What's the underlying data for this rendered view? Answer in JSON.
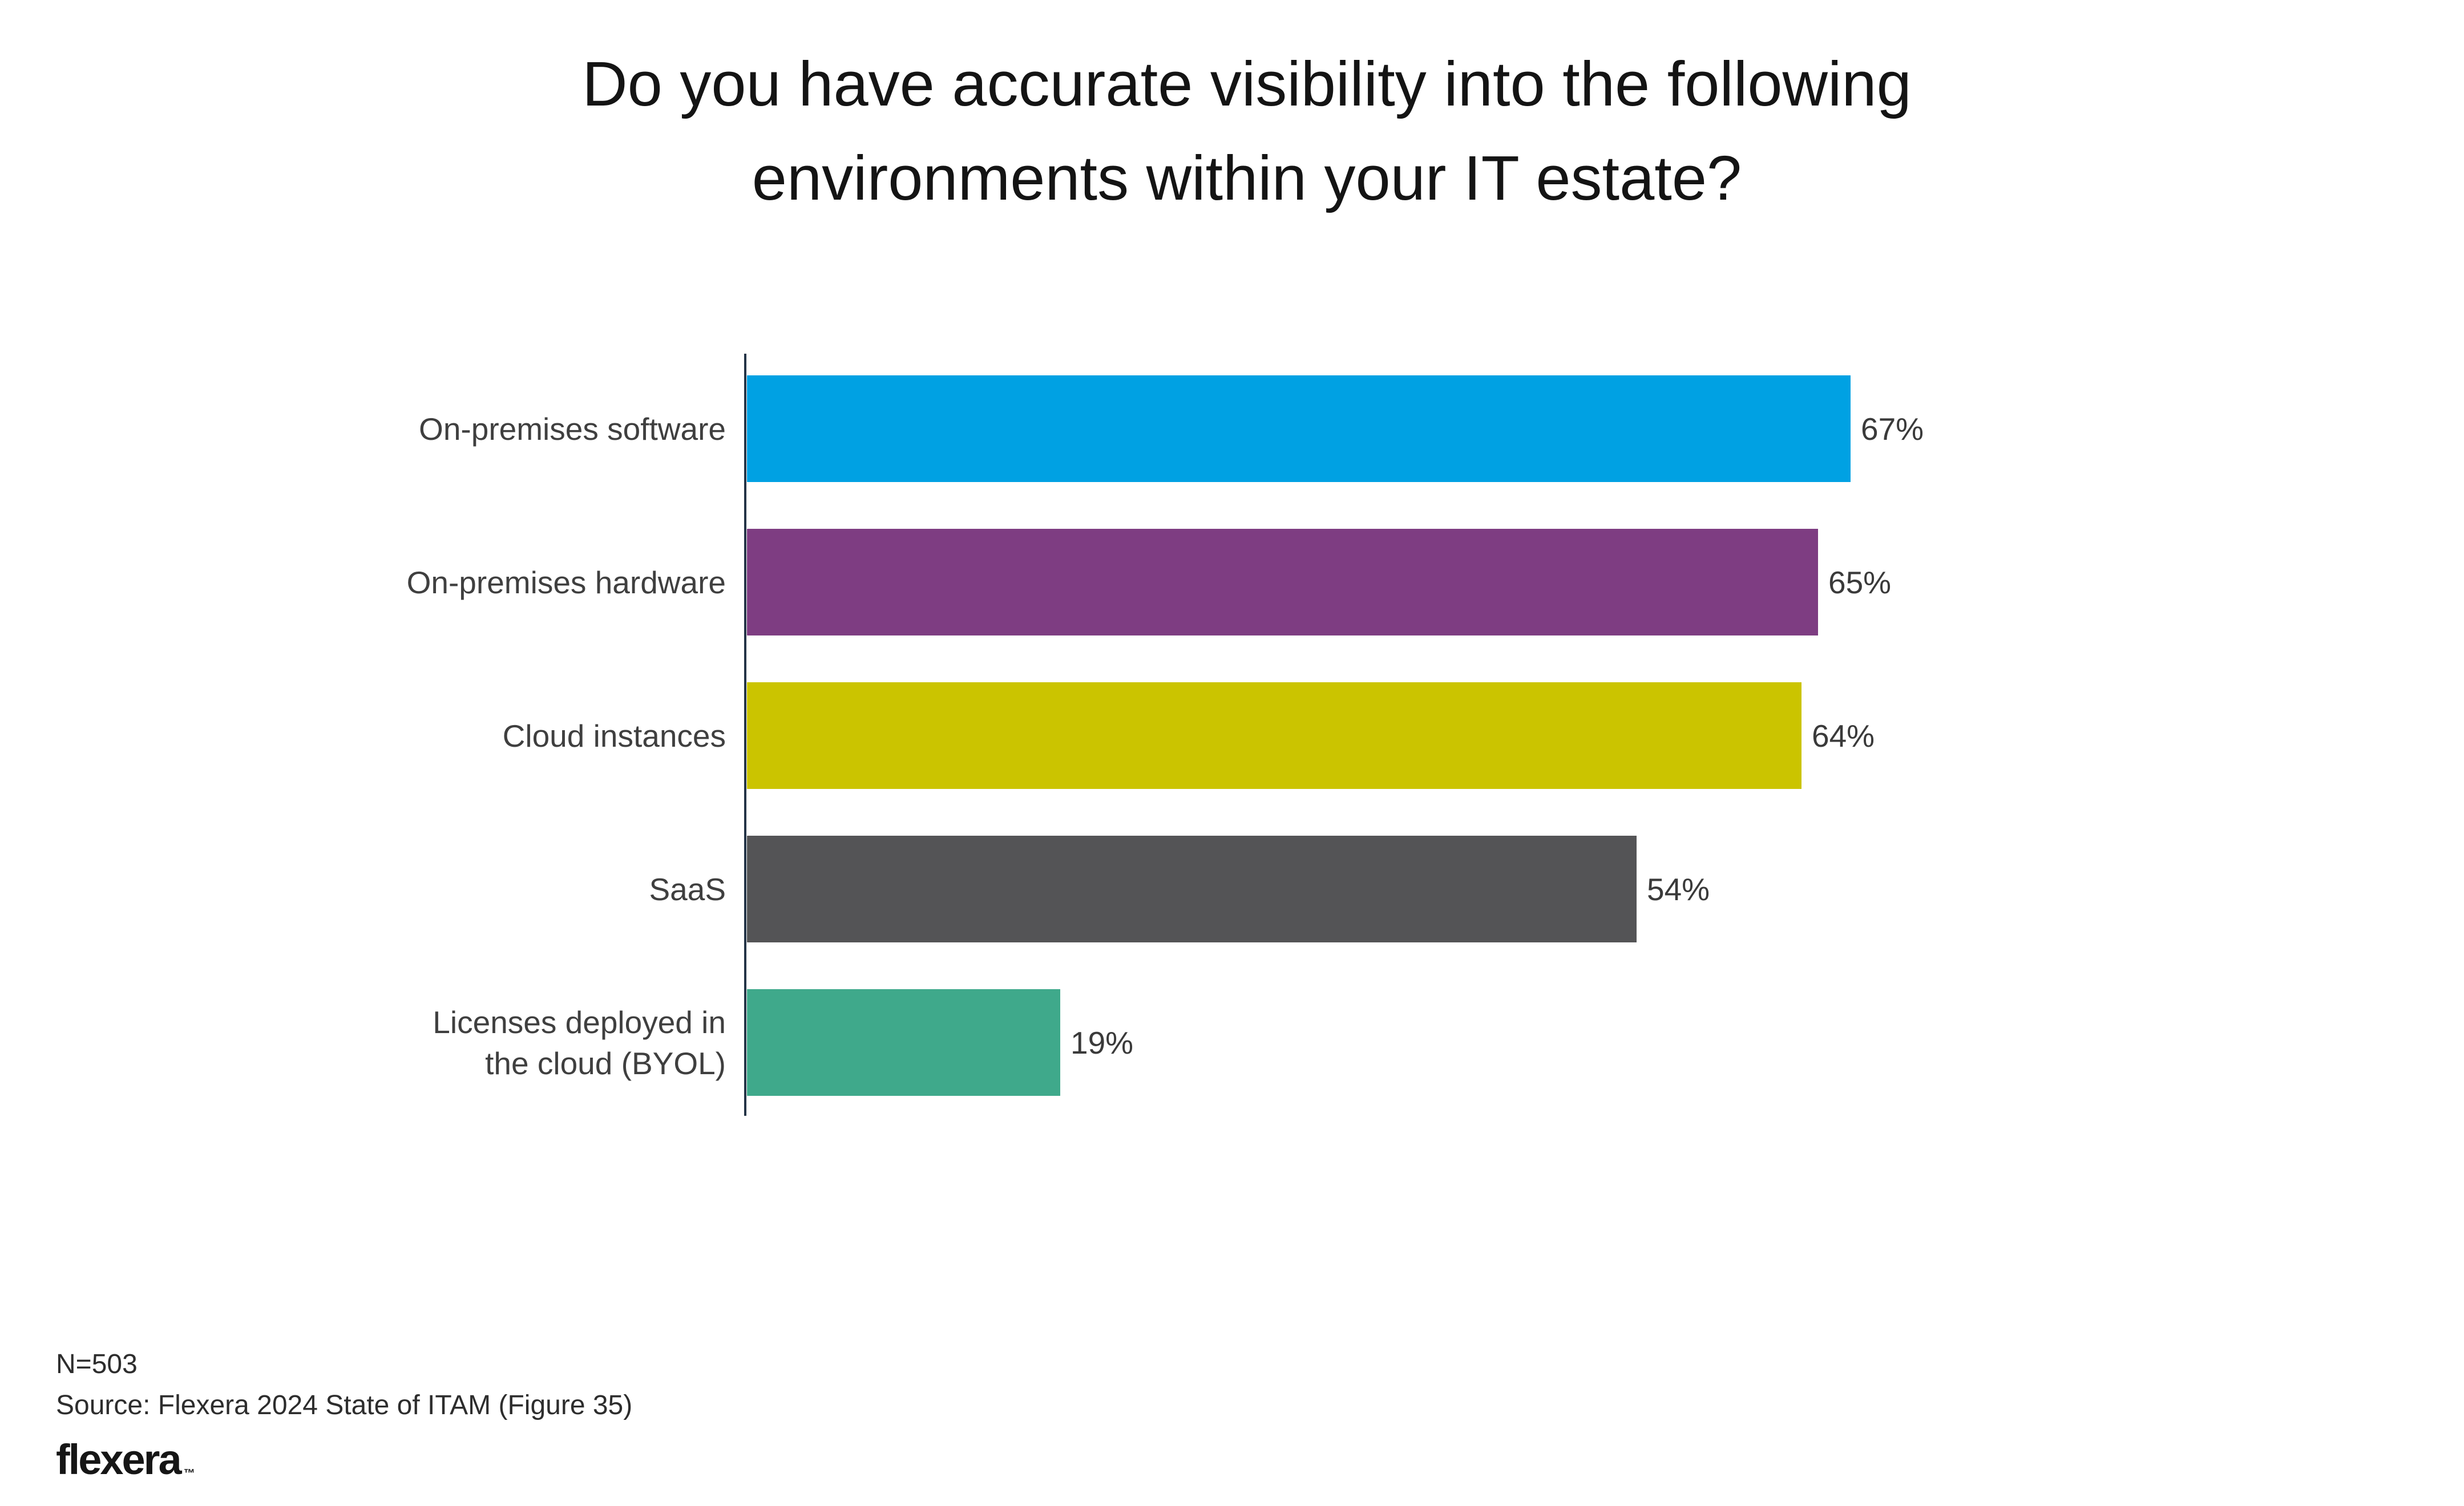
{
  "title": {
    "line1": "Do you have accurate visibility into the following",
    "line2": "environments within your IT estate?"
  },
  "chart_data": {
    "type": "bar",
    "orientation": "horizontal",
    "title": "Do you have accurate visibility into the following environments within your IT estate?",
    "categories": [
      "On-premises software",
      "On-premises hardware",
      "Cloud instances",
      "SaaS",
      "Licenses deployed in\nthe cloud (BYOL)"
    ],
    "values": [
      67,
      65,
      64,
      54,
      19
    ],
    "value_labels": [
      "67%",
      "65%",
      "64%",
      "54%",
      "19%"
    ],
    "unit": "percent",
    "xlim": [
      0,
      100
    ],
    "grid": false,
    "legend": false,
    "bar_colors": [
      "#00A1E3",
      "#7E3D82",
      "#CBC400",
      "#545456",
      "#3FA98B"
    ],
    "axis_color": "#243447",
    "label_color": "#3f3f3f"
  },
  "footer": {
    "sample_size": "N=503",
    "source": "Source: Flexera 2024 State of ITAM (Figure 35)",
    "logo_text": "flexera",
    "trademark": "™"
  }
}
